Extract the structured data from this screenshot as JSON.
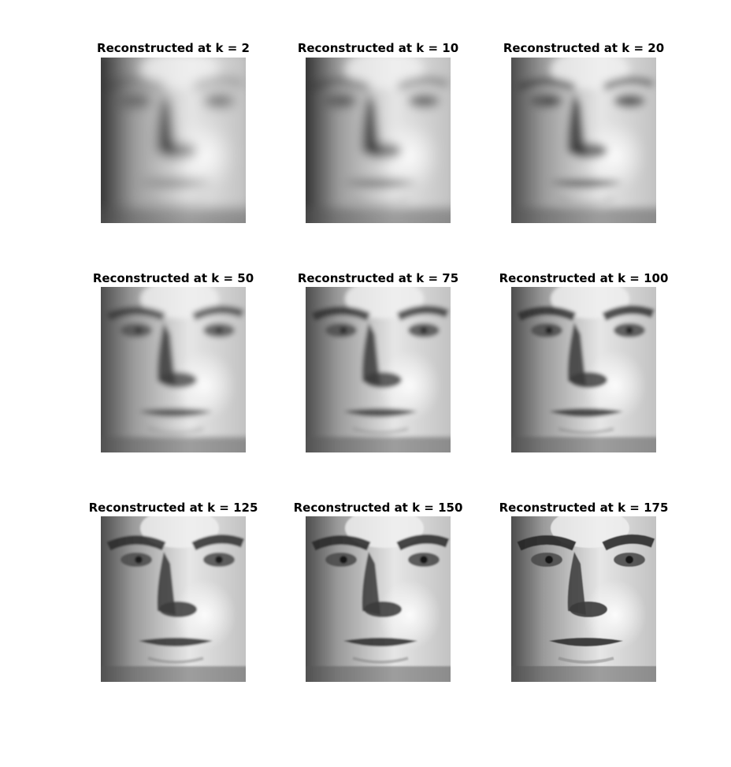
{
  "figure": {
    "panels": [
      {
        "title": "Reconstructed at k = 2",
        "k": 2,
        "sharpness": 0.05
      },
      {
        "title": "Reconstructed at k = 10",
        "k": 10,
        "sharpness": 0.2
      },
      {
        "title": "Reconstructed at k = 20",
        "k": 20,
        "sharpness": 0.35
      },
      {
        "title": "Reconstructed at k = 50",
        "k": 50,
        "sharpness": 0.6
      },
      {
        "title": "Reconstructed at k = 75",
        "k": 75,
        "sharpness": 0.72
      },
      {
        "title": "Reconstructed at k = 100",
        "k": 100,
        "sharpness": 0.8
      },
      {
        "title": "Reconstructed at k = 125",
        "k": 125,
        "sharpness": 0.88
      },
      {
        "title": "Reconstructed at k = 150",
        "k": 150,
        "sharpness": 0.94
      },
      {
        "title": "Reconstructed at k = 175",
        "k": 175,
        "sharpness": 1.0
      }
    ]
  }
}
